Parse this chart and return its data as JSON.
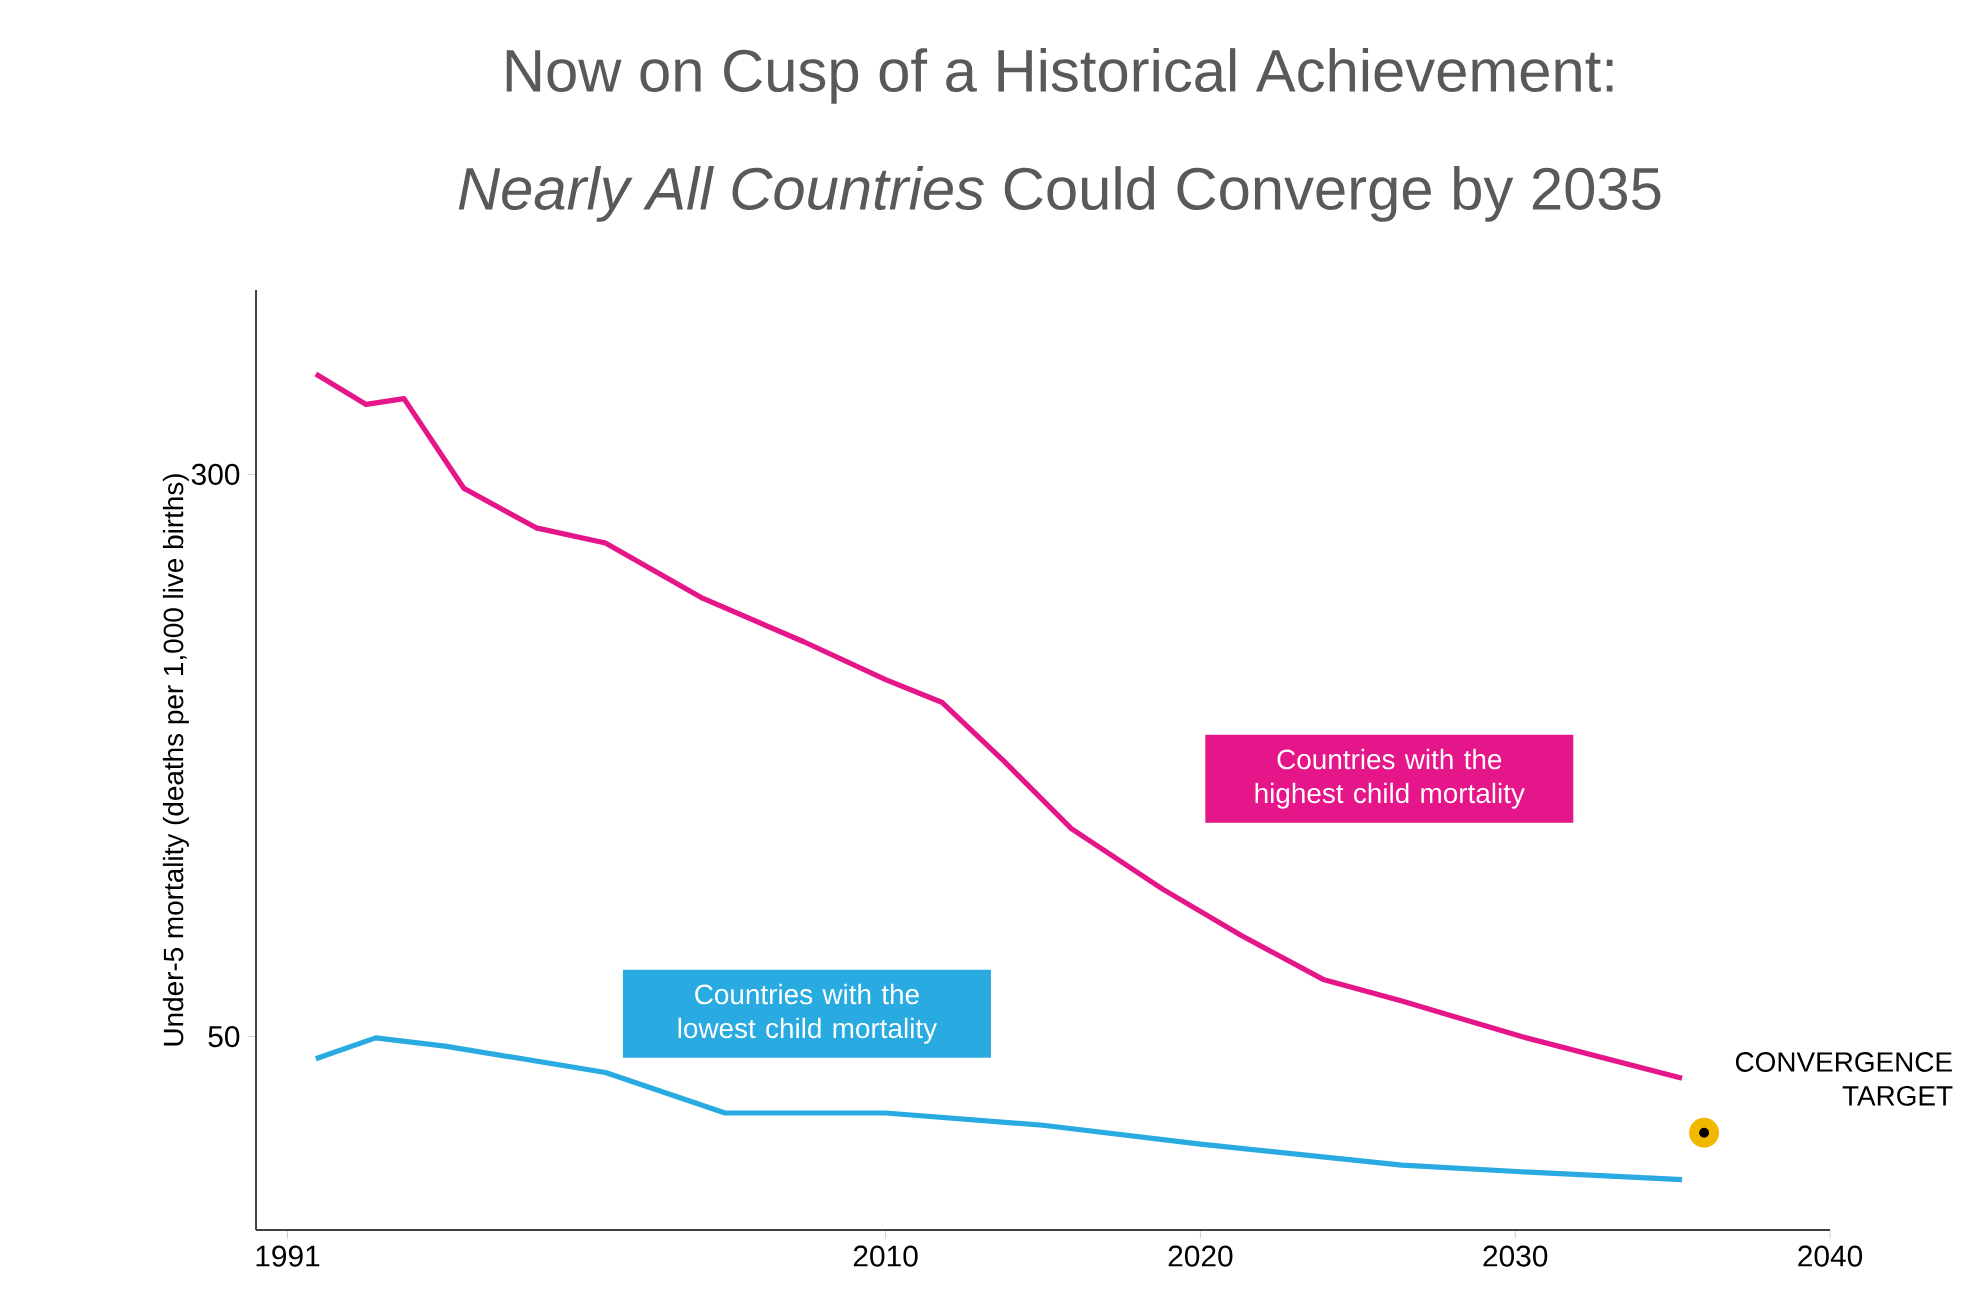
{
  "chart_data": {
    "type": "line",
    "title": "Now on Cusp of a Historical Achievement:",
    "subtitle": "*Nearly All Countries* Could Converge by 2035",
    "ylabel": "Under-5 mortality (deaths per 1,000 live births)",
    "log": "y",
    "xlim": [
      1990,
      2040
    ],
    "xticks": [
      1991,
      2010,
      2020,
      2030,
      2040
    ],
    "ylim": [
      27,
      540
    ],
    "yticks": [
      50,
      300
    ],
    "grid": false,
    "line_style": "solid",
    "series": [
      {
        "name": "Countries with the highest child mortality",
        "color": "#e5158a",
        "x": [
          1991.9,
          1993.5,
          1994.7,
          1996.6,
          1998.9,
          2001.1,
          2004.2,
          2007.4,
          2010,
          2011.8,
          2013.7,
          2015.9,
          2018.8,
          2021.3,
          2023.9,
          2026.4,
          2030.2,
          2035.3
        ],
        "values": [
          413,
          375,
          382,
          287,
          253,
          241,
          202,
          176,
          156,
          145,
          121,
          97,
          80,
          69,
          60,
          56,
          50,
          43.8
        ]
      },
      {
        "name": "Countries with the lowest child mortality",
        "color": "#29abe2",
        "x": [
          1991.9,
          1993.8,
          1996,
          2001.1,
          2004.9,
          2010,
          2015,
          2020,
          2026.4,
          2030.2,
          2035.3
        ],
        "values": [
          46.6,
          49.8,
          48.5,
          44.6,
          39.2,
          39.2,
          37.7,
          35.5,
          33.2,
          32.5,
          31.7
        ]
      },
      {
        "type": "scatter",
        "marker": "circle",
        "color": "#f2b800",
        "x": [
          2036
        ],
        "values": [
          36.8
        ]
      }
    ],
    "annotations": [
      {
        "text": "CONVERGENCE TARGET",
        "x": 2036,
        "y": 36.8
      }
    ]
  }
}
